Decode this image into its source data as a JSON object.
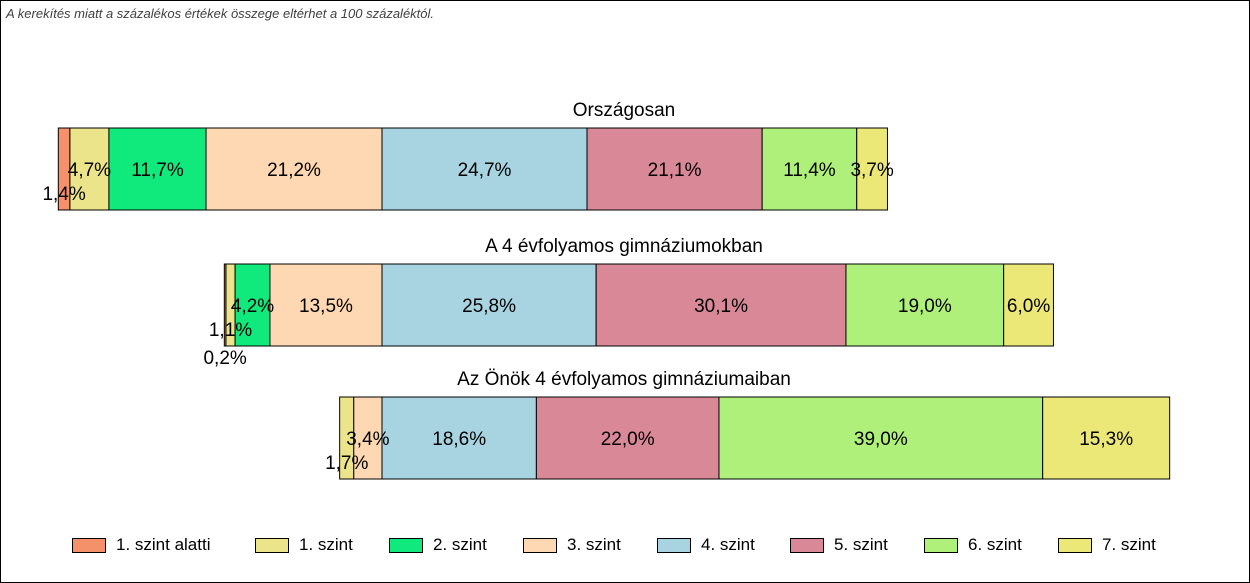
{
  "note": "A kerekítés miatt a  százalékos értékek összege eltérhet a 100 százaléktól.",
  "chart_data": {
    "type": "bar",
    "orientation": "horizontal-stacked-100",
    "categories": [
      "1. szint alatti",
      "1. szint",
      "2. szint",
      "3. szint",
      "4. szint",
      "5. szint",
      "6. szint",
      "7. szint"
    ],
    "colors": [
      "#f4906a",
      "#ece48a",
      "#10ea7c",
      "#fdd8b2",
      "#a8d4e2",
      "#d98898",
      "#aef07a",
      "#ece878"
    ],
    "legend_position": "bottom",
    "groups": [
      {
        "title": "Országosan",
        "values": [
          1.4,
          4.7,
          11.7,
          21.2,
          24.7,
          21.1,
          11.4,
          3.7
        ],
        "labels": [
          "1,4%",
          "4,7%",
          "11,7%",
          "21,2%",
          "24,7%",
          "21,1%",
          "11,4%",
          "3,7%"
        ]
      },
      {
        "title": "A 4 évfolyamos gimnáziumokban",
        "values": [
          0.2,
          1.1,
          4.2,
          13.5,
          25.8,
          30.1,
          19.0,
          6.0
        ],
        "labels": [
          "0,2%",
          "1,1%",
          "4,2%",
          "13,5%",
          "25,8%",
          "30,1%",
          "19,0%",
          "6,0%"
        ]
      },
      {
        "title": "Az Önök 4 évfolyamos gimnáziumaiban",
        "values": [
          0.0,
          1.7,
          0.0,
          3.4,
          18.6,
          22.0,
          39.0,
          15.3
        ],
        "labels": [
          "",
          "1,7%",
          "",
          "3,4%",
          "18,6%",
          "22,0%",
          "39,0%",
          "15,3%"
        ]
      }
    ]
  }
}
